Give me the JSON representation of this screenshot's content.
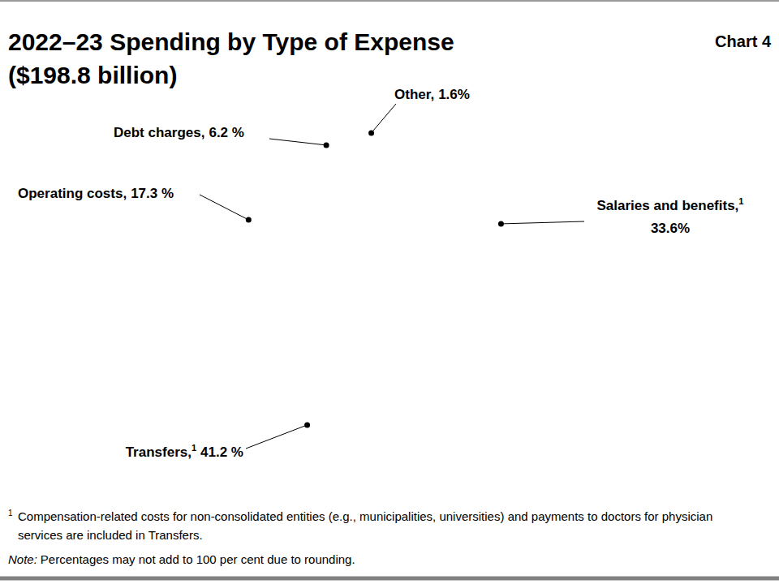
{
  "chart_data": {
    "type": "pie",
    "title": "2022–23 Spending by Type of Expense",
    "subtitle": "($198.8 billion)",
    "chart_number": "Chart 4",
    "categories": [
      "Salaries and benefits,",
      "Transfers,",
      "Operating costs,",
      "Debt charges,",
      "Other,"
    ],
    "values": [
      33.6,
      41.2,
      17.3,
      6.2,
      1.6
    ],
    "value_labels": [
      "33.6%",
      "41.2 %",
      "17.3 %",
      "6.2 %",
      "1.6%"
    ],
    "label_markers": [
      "1",
      "1",
      null,
      null,
      null
    ],
    "colors": [
      "#646464",
      "#b3b3b3",
      "#808080",
      "#ffffff",
      "#a6a6a6"
    ],
    "data_labels": true,
    "footnotes": [
      {
        "marker": "1",
        "text": "Compensation-related costs for non-consolidated entities (e.g., municipalities, universities) and payments to doctors for physician services are included in Transfers."
      }
    ],
    "note": {
      "label": "Note:",
      "text": "Percentages may not add to 100 per cent due to rounding."
    }
  }
}
